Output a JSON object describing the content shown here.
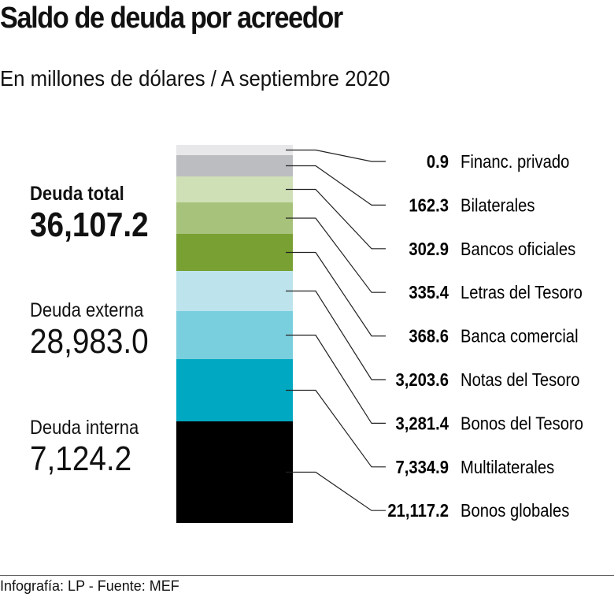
{
  "chart_data": {
    "type": "bar",
    "subtype": "stacked-single",
    "title": "Saldo de deuda por acreedor",
    "subtitle": "En millones de dólares / A septiembre 2020",
    "categories": [
      "Financ. privado",
      "Bilaterales",
      "Bancos oficiales",
      "Letras del Tesoro",
      "Banca comercial",
      "Notas del Tesoro",
      "Bonos del Tesoro",
      "Multilaterales",
      "Bonos globales"
    ],
    "values": [
      0.9,
      162.3,
      302.9,
      335.4,
      368.6,
      3203.6,
      3281.4,
      7334.9,
      21117.2
    ],
    "value_labels": [
      "0.9",
      "162.3",
      "302.9",
      "335.4",
      "368.6",
      "3,203.6",
      "3,281.4",
      "7,334.9",
      "21,117.2"
    ],
    "colors": [
      "#e8e8ea",
      "#bcbdc0",
      "#cfdfb6",
      "#a7c27b",
      "#78a032",
      "#bde4ec",
      "#79cfdd",
      "#00a9c1",
      "#000000"
    ]
  },
  "summary": {
    "total_label": "Deuda total",
    "total_value": "36,107.2",
    "external_label": "Deuda externa",
    "external_value": "28,983.0",
    "internal_label": "Deuda interna",
    "internal_value": "7,124.2"
  },
  "footer": "Infografía: LP - Fuente: MEF"
}
